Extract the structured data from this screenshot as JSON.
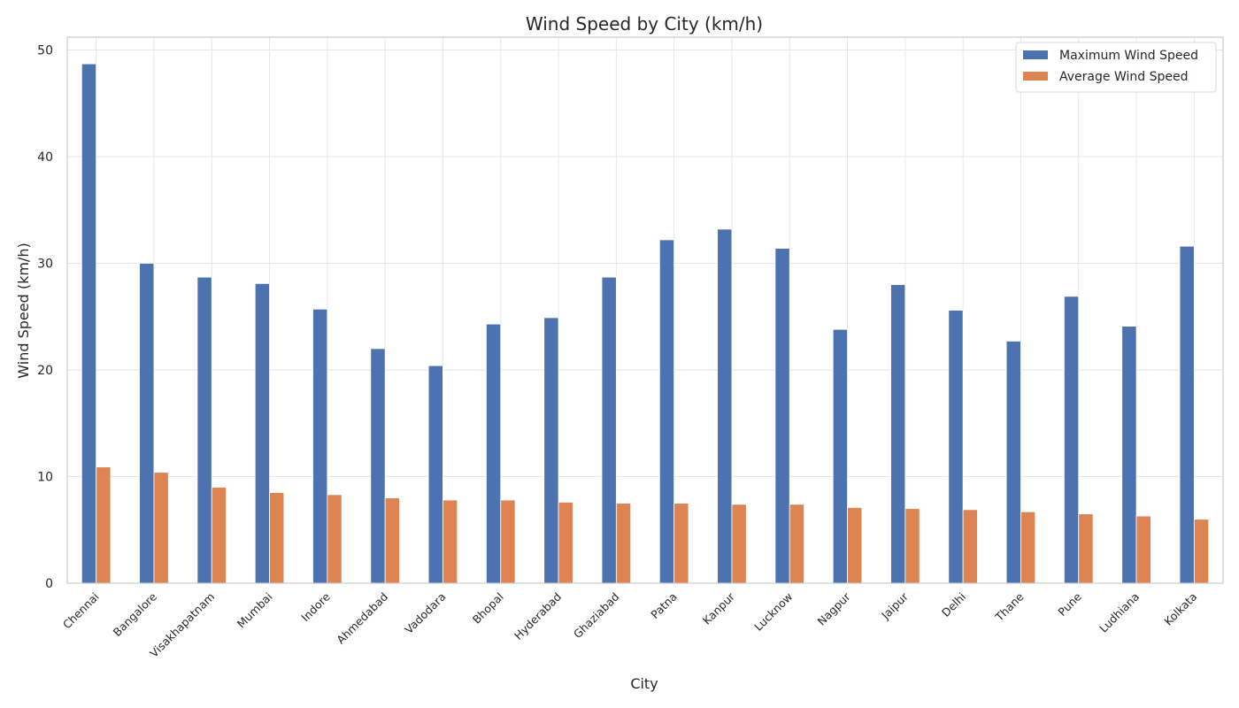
{
  "chart_data": {
    "type": "bar",
    "title": "Wind Speed by City (km/h)",
    "xlabel": "City",
    "ylabel": "Wind Speed (km/h)",
    "ylim": [
      0,
      51.2
    ],
    "yticks": [
      "0",
      "10",
      "20",
      "30",
      "40",
      "50"
    ],
    "grid": true,
    "legend_position": "top-right",
    "categories": [
      "Chennai",
      "Bangalore",
      "Visakhapatnam",
      "Mumbai",
      "Indore",
      "Ahmedabad",
      "Vadodara",
      "Bhopal",
      "Hyderabad",
      "Ghaziabad",
      "Patna",
      "Kanpur",
      "Lucknow",
      "Nagpur",
      "Jaipur",
      "Delhi",
      "Thane",
      "Pune",
      "Ludhiana",
      "Kolkata"
    ],
    "series": [
      {
        "name": "Maximum Wind Speed",
        "color": "#4c72b0",
        "values": [
          48.7,
          30.0,
          28.7,
          28.1,
          25.7,
          22.0,
          20.4,
          24.3,
          24.9,
          28.7,
          32.2,
          33.2,
          31.4,
          23.8,
          28.0,
          25.6,
          22.7,
          26.9,
          24.1,
          31.6
        ]
      },
      {
        "name": "Average Wind Speed",
        "color": "#dd8452",
        "values": [
          10.9,
          10.4,
          9.0,
          8.5,
          8.3,
          8.0,
          7.8,
          7.8,
          7.6,
          7.5,
          7.5,
          7.4,
          7.4,
          7.1,
          7.0,
          6.9,
          6.7,
          6.5,
          6.3,
          6.0
        ]
      }
    ]
  }
}
